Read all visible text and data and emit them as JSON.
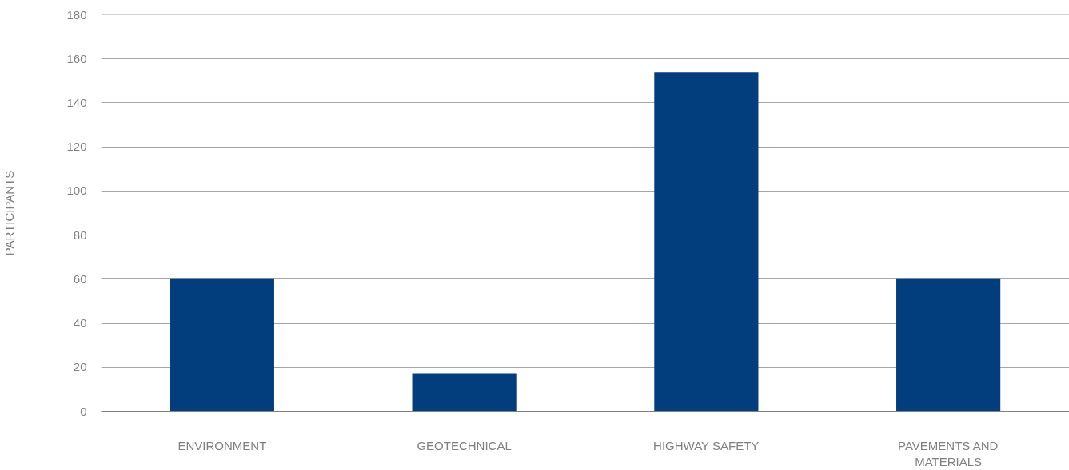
{
  "chart_data": {
    "type": "bar",
    "ylabel": "PARTICIPANTS",
    "categories": [
      "ENVIRONMENT",
      "GEOTECHNICAL",
      "HIGHWAY SAFETY",
      "PAVEMENTS AND MATERIALS"
    ],
    "values": [
      60,
      17,
      154,
      60
    ],
    "color": "#023e7d",
    "ylim": [
      0,
      180
    ],
    "yticks": [
      0,
      20,
      40,
      60,
      80,
      100,
      120,
      140,
      160,
      180
    ],
    "grid": "y"
  }
}
